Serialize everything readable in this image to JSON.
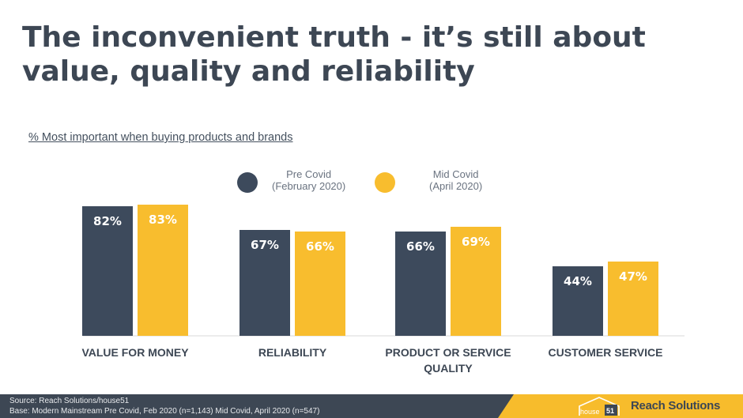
{
  "title": "The inconvenient truth - it’s still about value, quality and reliability",
  "subtitle": "% Most important when buying products and brands",
  "legend": [
    {
      "line1": "Pre Covid",
      "line2": "(February 2020)",
      "color": "#3d4a5c"
    },
    {
      "line1": "Mid Covid",
      "line2": "(April 2020)",
      "color": "#f8bd2e"
    }
  ],
  "chart_data": {
    "type": "bar",
    "title": "% Most important when buying products and brands",
    "categories": [
      [
        "VALUE FOR MONEY"
      ],
      [
        "RELIABILITY"
      ],
      [
        "PRODUCT OR SERVICE",
        "QUALITY"
      ],
      [
        "CUSTOMER SERVICE"
      ]
    ],
    "series": [
      {
        "name": "Pre Covid (February 2020)",
        "values": [
          82,
          67,
          66,
          44
        ],
        "color": "#3d4a5c"
      },
      {
        "name": "Mid Covid (April 2020)",
        "values": [
          83,
          66,
          69,
          47
        ],
        "color": "#f8bd2e"
      }
    ],
    "value_suffix": "%",
    "ylim": [
      0,
      100
    ],
    "xlabel": "",
    "ylabel": "",
    "grid": false,
    "legend_position": "top"
  },
  "footer": {
    "source": "Source: Reach Solutions/house51",
    "base": "Base: Modern Mainstream  Pre Covid, Feb 2020 (n=1,143) Mid Covid, April 2020 (n=547)",
    "house_text": "house",
    "house_number": "51",
    "brand": "Reach Solutions"
  }
}
